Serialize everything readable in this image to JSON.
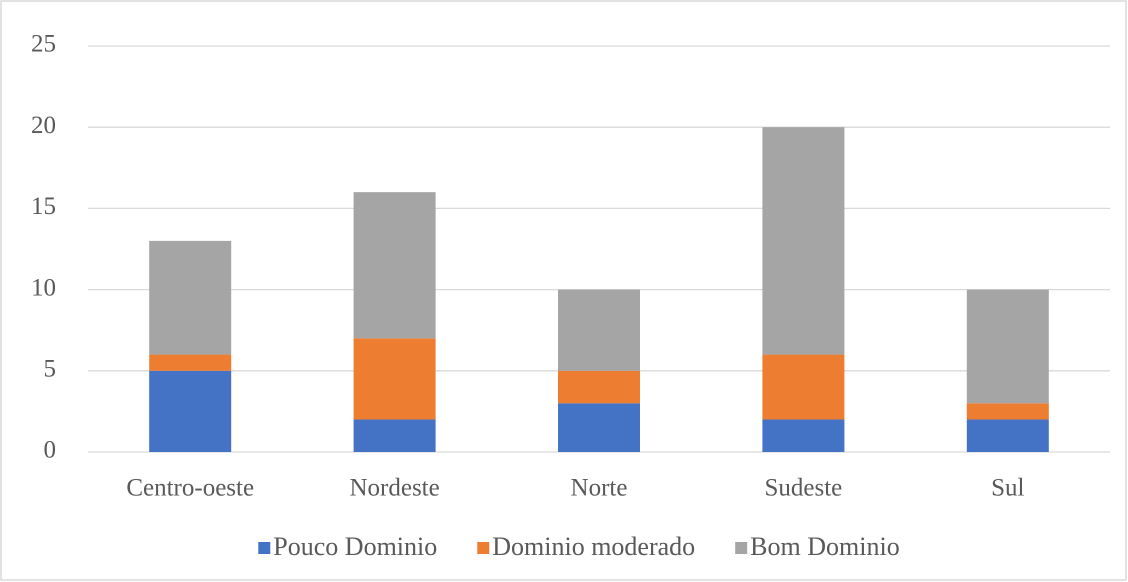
{
  "chart_data": {
    "type": "stacked_bar",
    "categories": [
      "Centro-oeste",
      "Nordeste",
      "Norte",
      "Sudeste",
      "Sul"
    ],
    "series": [
      {
        "name": "Pouco Dominio",
        "color": "#4472c4",
        "values": [
          5,
          2,
          3,
          2,
          2
        ]
      },
      {
        "name": "Dominio moderado",
        "color": "#ed7d31",
        "values": [
          1,
          5,
          2,
          4,
          1
        ]
      },
      {
        "name": "Bom Dominio",
        "color": "#a5a5a5",
        "values": [
          7,
          9,
          5,
          14,
          7
        ]
      }
    ],
    "ylim": [
      0,
      25
    ],
    "yticks": [
      0,
      5,
      10,
      15,
      20,
      25
    ],
    "grid": true,
    "legend": "bottom"
  }
}
